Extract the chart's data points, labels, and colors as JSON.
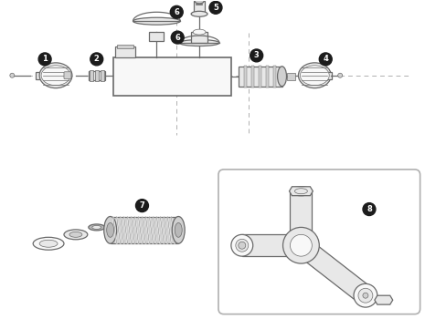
{
  "bg_color": "#ffffff",
  "stroke": "#6a6a6a",
  "fill_light": "#e8e8e8",
  "fill_mid": "#d0d0d0",
  "fill_dark": "#b8b8b8",
  "fill_white": "#f8f8f8",
  "label_bg": "#1c1c1c",
  "label_fg": "#ffffff",
  "dash_color": "#b0b0b0",
  "box_stroke": "#b0b0b0",
  "lw": 0.9,
  "lw_thin": 0.5,
  "lw_thick": 1.2
}
